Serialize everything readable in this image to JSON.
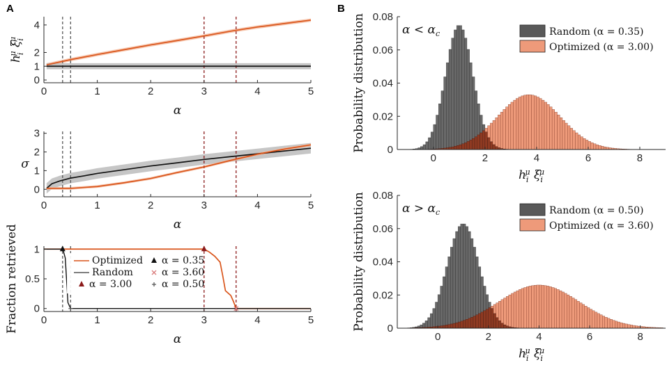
{
  "colors": {
    "optimized": "#d9541a",
    "optimized_band": "#f4b89a",
    "random": "#111111",
    "random_band": "#b8b8b8",
    "vline_light": "#555555",
    "vline_dark": "#8b1a1a",
    "hist_random": "#595959",
    "hist_opt": "#ee9a7a",
    "hist_overlap": "#8f3a22"
  },
  "chart_data": [
    {
      "id": "A1",
      "panel_letter": "A",
      "type": "line",
      "ylabel": "⟨h_i^μ ξ_i^μ⟩",
      "xlabel": "α",
      "xlim": [
        0,
        5
      ],
      "ylim": [
        -0.2,
        4.6
      ],
      "xticks": [
        "0",
        "1",
        "2",
        "3",
        "4",
        "5"
      ],
      "yticks": [
        "0",
        "1",
        "2",
        "4"
      ],
      "vlines": [
        0.35,
        0.5,
        3.0,
        3.6
      ],
      "series": [
        {
          "name": "Optimized",
          "x": [
            0.05,
            0.5,
            1,
            1.5,
            2,
            2.5,
            3,
            3.5,
            4,
            4.5,
            5
          ],
          "y": [
            1.1,
            1.48,
            1.85,
            2.2,
            2.55,
            2.87,
            3.2,
            3.55,
            3.85,
            4.1,
            4.35
          ],
          "band": 0.12
        },
        {
          "name": "Random",
          "x": [
            0.05,
            1,
            2,
            3,
            4,
            5
          ],
          "y": [
            1,
            1,
            1,
            1,
            1,
            1
          ],
          "band": 0.22
        }
      ]
    },
    {
      "id": "A2",
      "type": "line",
      "ylabel": "σ",
      "xlabel": "α",
      "xlim": [
        0,
        5
      ],
      "ylim": [
        -0.4,
        3.1
      ],
      "xticks": [
        "0",
        "1",
        "2",
        "3",
        "4",
        "5"
      ],
      "yticks": [
        "0",
        "1",
        "2",
        "3"
      ],
      "vlines": [
        0.35,
        0.5,
        3.0,
        3.6
      ],
      "series": [
        {
          "name": "Random",
          "x": [
            0.05,
            0.15,
            0.3,
            0.5,
            0.75,
            1,
            1.5,
            2,
            2.5,
            3,
            3.5,
            4,
            4.5,
            5
          ],
          "y": [
            0.05,
            0.3,
            0.45,
            0.6,
            0.72,
            0.85,
            1.05,
            1.25,
            1.42,
            1.6,
            1.75,
            1.9,
            2.05,
            2.2
          ],
          "band": 0.28
        },
        {
          "name": "Optimized",
          "x": [
            0.05,
            0.5,
            1,
            1.5,
            2,
            2.5,
            3,
            3.5,
            4,
            4.5,
            5
          ],
          "y": [
            0.05,
            0.05,
            0.15,
            0.35,
            0.58,
            0.9,
            1.2,
            1.55,
            1.88,
            2.15,
            2.38
          ],
          "band": 0.07
        }
      ]
    },
    {
      "id": "A3",
      "type": "line",
      "ylabel": "Fraction retrieved",
      "xlabel": "α",
      "xlim": [
        0,
        5
      ],
      "ylim": [
        -0.05,
        1.05
      ],
      "xticks": [
        "0",
        "1",
        "2",
        "3",
        "4",
        "5"
      ],
      "yticks": [
        "0",
        "0.5",
        "1"
      ],
      "vlines": [
        0.35,
        0.5,
        3.0,
        3.6
      ],
      "series": [
        {
          "name": "Optimized",
          "x": [
            0,
            3.0,
            3.1,
            3.2,
            3.3,
            3.35,
            3.4,
            3.45,
            3.5,
            3.55,
            3.6,
            5
          ],
          "y": [
            1,
            1,
            0.95,
            0.88,
            0.78,
            0.55,
            0.3,
            0.26,
            0.22,
            0.12,
            0,
            0
          ]
        },
        {
          "name": "Random",
          "x": [
            0,
            0.35,
            0.37,
            0.4,
            0.43,
            0.45,
            0.5,
            5
          ],
          "y": [
            1,
            1,
            0.95,
            0.85,
            0.4,
            0.1,
            0,
            0
          ]
        }
      ],
      "markers": [
        {
          "label": "α = 0.35",
          "symbol": "triangle",
          "color": "#111111",
          "x": 0.35,
          "y": 1
        },
        {
          "label": "α = 0.50",
          "symbol": "star",
          "color": "#555555",
          "x": 0.5,
          "y": 0
        },
        {
          "label": "α = 3.00",
          "symbol": "triangle",
          "color": "#8b1a1a",
          "x": 3.0,
          "y": 1
        },
        {
          "label": "α = 3.60",
          "symbol": "cross",
          "color": "#d97a7a",
          "x": 3.6,
          "y": 0
        }
      ],
      "legend": [
        "Optimized",
        "Random",
        "α = 3.00",
        "α = 0.35",
        "α = 3.60",
        "α = 0.50"
      ]
    },
    {
      "id": "B1",
      "panel_letter": "B",
      "type": "bar",
      "annotation": "α < α_c",
      "ylabel": "Probability distribution",
      "xlabel": "h_i^μ ξ_i^μ",
      "xlim": [
        -1.4,
        9.0
      ],
      "ylim": [
        0,
        0.08
      ],
      "xticks": [
        "0",
        "2",
        "4",
        "6",
        "8"
      ],
      "yticks": [
        "0",
        "0.02",
        "0.04",
        "0.06",
        "0.08"
      ],
      "legend": [
        "Random (α = 0.35)",
        "Optimized (α = 3.00)"
      ],
      "series": [
        {
          "name": "Random (α = 0.35)",
          "mean": 1.0,
          "std": 0.53,
          "peak": 0.075
        },
        {
          "name": "Optimized (α = 3.00)",
          "mean": 3.7,
          "std": 1.2,
          "peak": 0.033
        }
      ]
    },
    {
      "id": "B2",
      "type": "bar",
      "annotation": "α > α_c",
      "ylabel": "Probability distribution",
      "xlabel": "h_i^μ ξ_i^μ",
      "xlim": [
        -1.6,
        9.0
      ],
      "ylim": [
        0,
        0.08
      ],
      "xticks": [
        "0",
        "2",
        "4",
        "6",
        "8"
      ],
      "yticks": [
        "0",
        "0.02",
        "0.04",
        "0.06",
        "0.08"
      ],
      "legend": [
        "Random (α = 0.50)",
        "Optimized (α = 3.60)"
      ],
      "series": [
        {
          "name": "Random (α = 0.50)",
          "mean": 1.0,
          "std": 0.63,
          "peak": 0.063
        },
        {
          "name": "Optimized (α = 3.60)",
          "mean": 4.0,
          "std": 1.6,
          "peak": 0.026
        }
      ]
    }
  ]
}
